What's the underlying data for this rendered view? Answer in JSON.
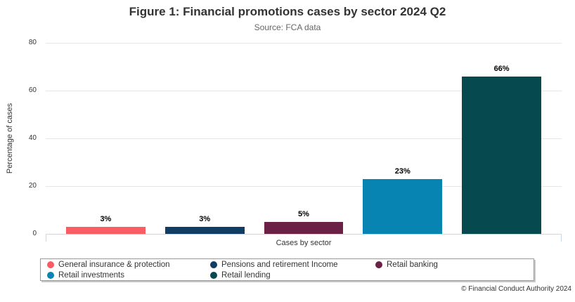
{
  "chart": {
    "title": "Figure 1: Financial promotions cases by sector 2024 Q2",
    "subtitle": "Source: FCA data",
    "xlabel": "Cases by sector",
    "ylabel": "Percentage of cases",
    "credits": "© Financial Conduct Authority 2024"
  },
  "chart_data": {
    "type": "bar",
    "title": "Figure 1: Financial promotions cases by sector 2024 Q2",
    "subtitle": "Source: FCA data",
    "xlabel": "Cases by sector",
    "ylabel": "Percentage of cases",
    "ylim": [
      0,
      80
    ],
    "yticks": [
      0,
      20,
      40,
      60,
      80
    ],
    "grid": true,
    "legend_position": "bottom",
    "categories": [
      "General insurance & protection",
      "Pensions and retirement Income",
      "Retail banking",
      "Retail investments",
      "Retail lending"
    ],
    "values": [
      3,
      3,
      5,
      23,
      66
    ],
    "value_labels": [
      "3%",
      "3%",
      "5%",
      "23%",
      "66%"
    ],
    "colors": [
      "#FA5C63",
      "#113C63",
      "#6B2146",
      "#0884B2",
      "#06494F"
    ]
  },
  "legend": {
    "items": [
      {
        "label": "General insurance & protection",
        "color": "#FA5C63"
      },
      {
        "label": "Pensions and retirement Income",
        "color": "#113C63"
      },
      {
        "label": "Retail banking",
        "color": "#6B2146"
      },
      {
        "label": "Retail investments",
        "color": "#0884B2"
      },
      {
        "label": "Retail lending",
        "color": "#06494F"
      }
    ]
  }
}
